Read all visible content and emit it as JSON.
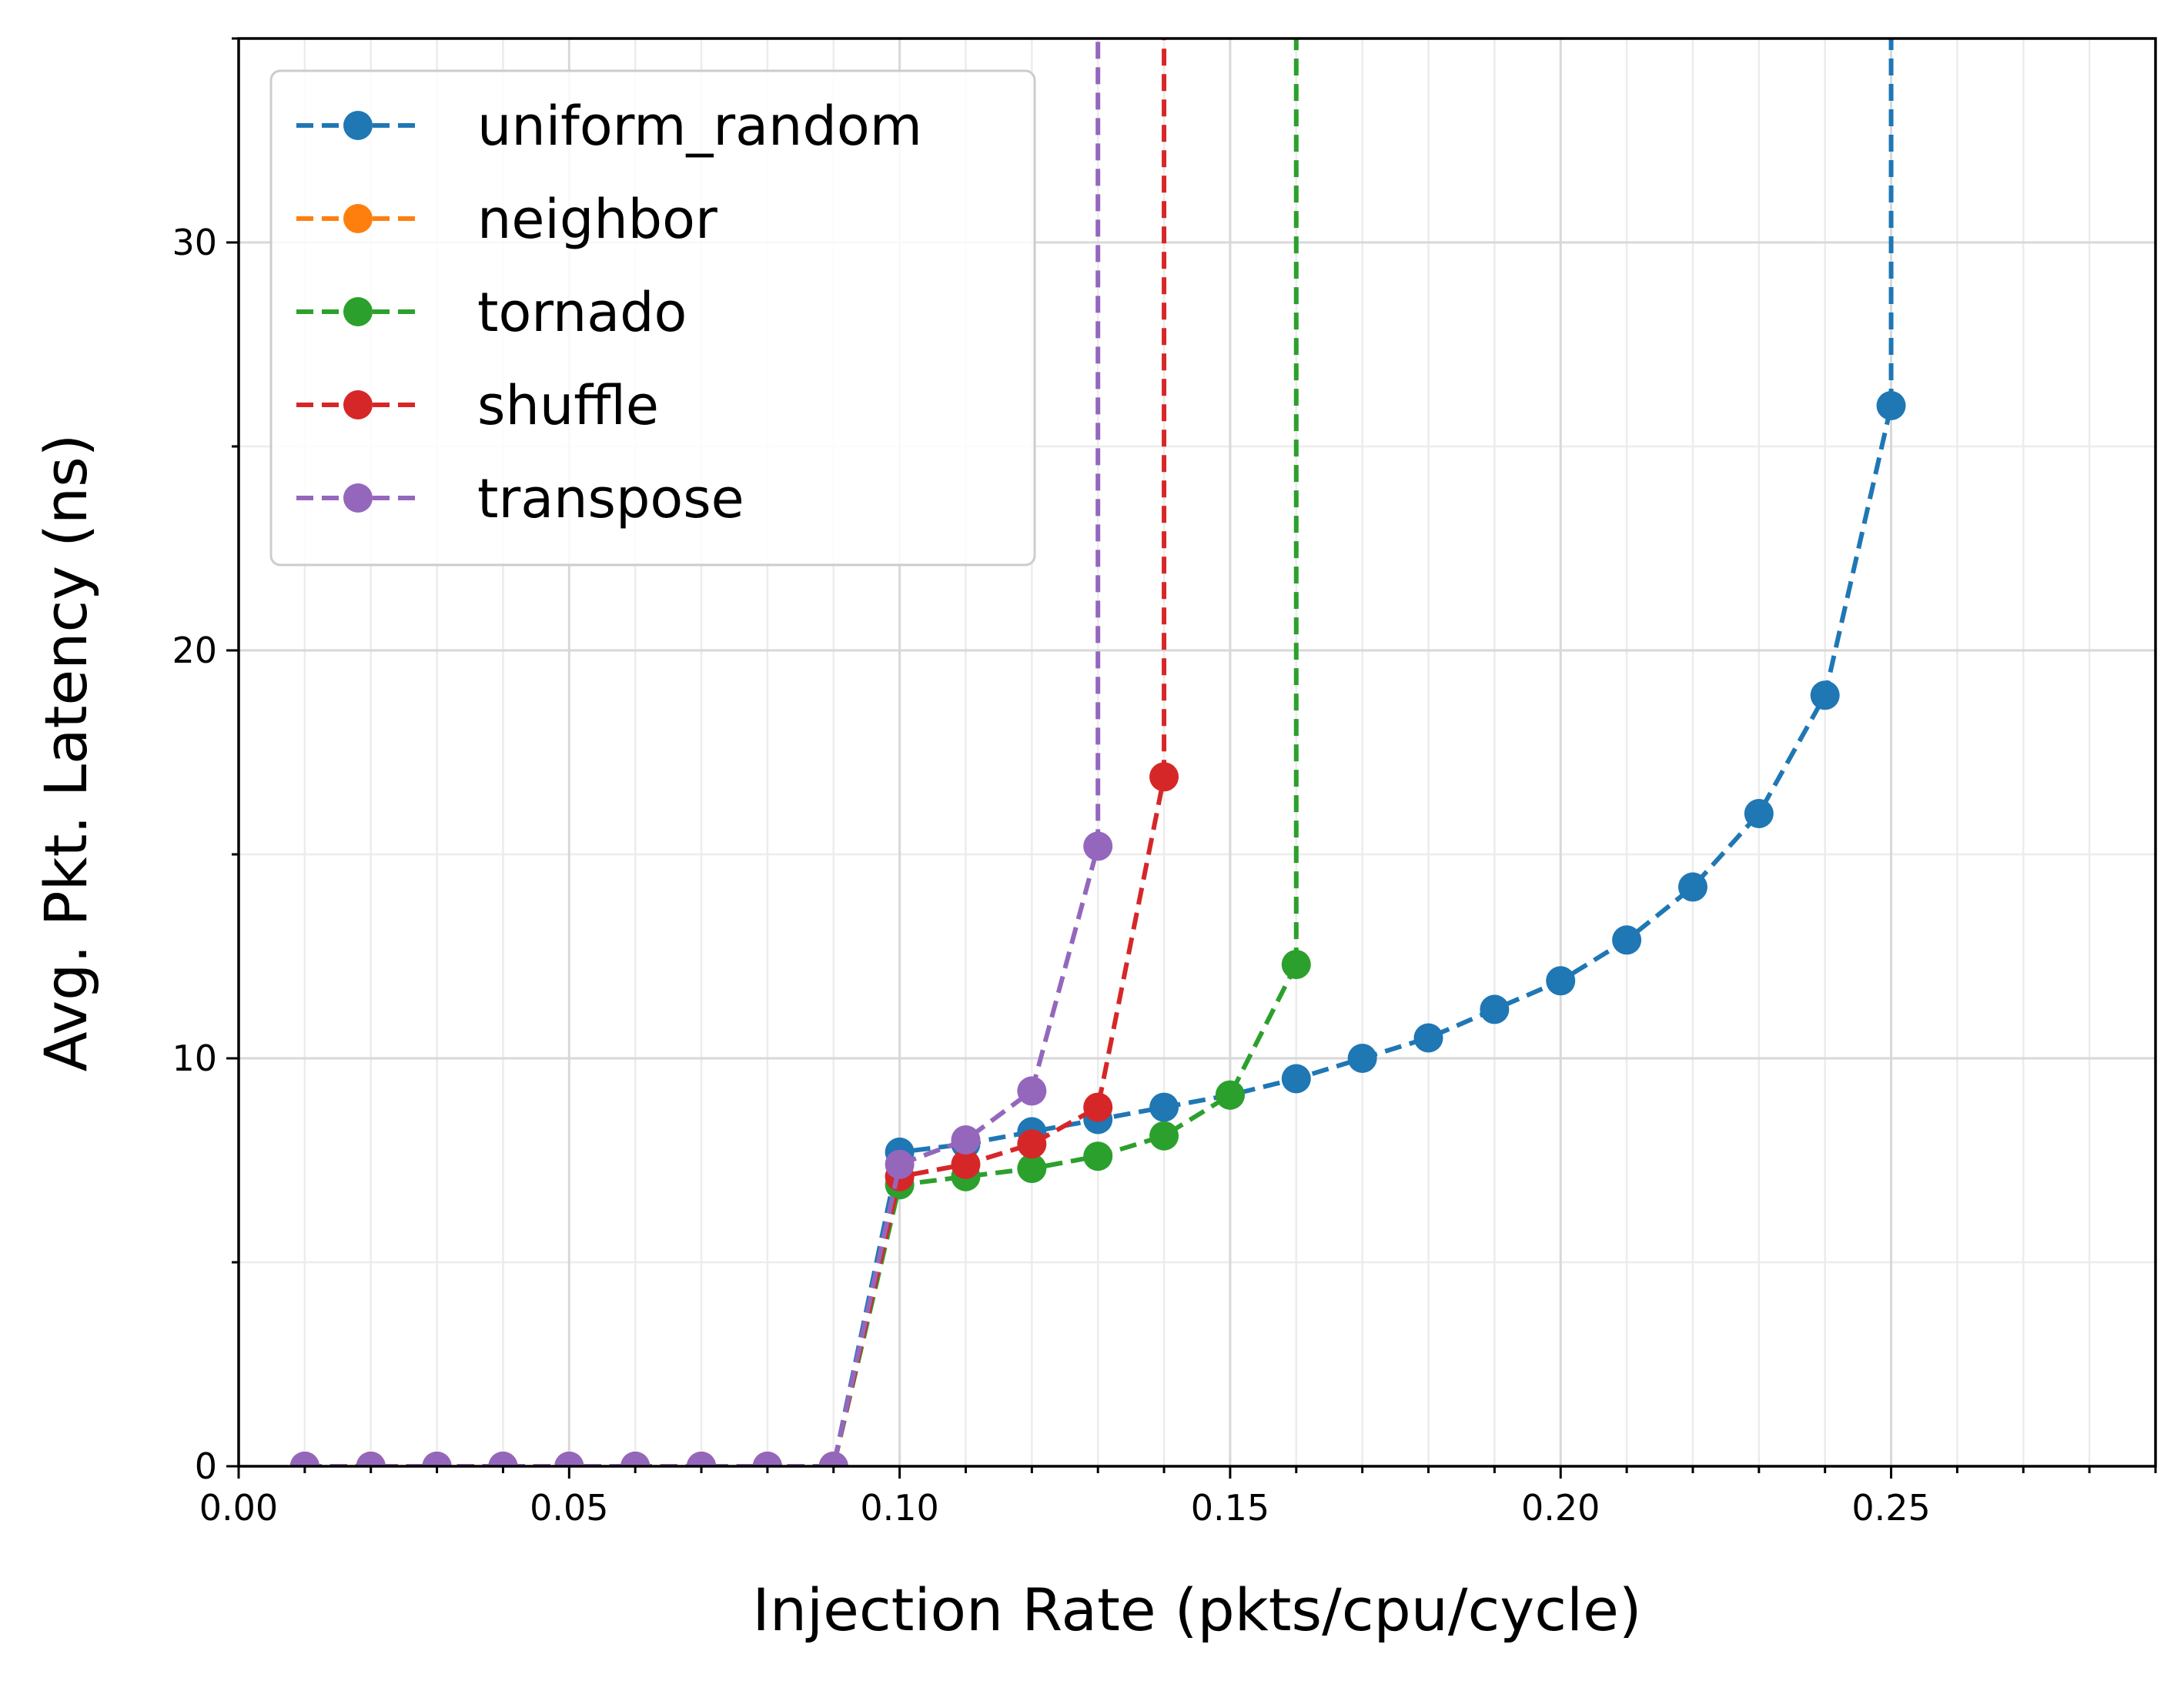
{
  "chart_data": {
    "type": "line",
    "xlabel": "Injection Rate  (pkts/cpu/cycle)",
    "ylabel": "Avg. Pkt. Latency (ns)",
    "xlim": [
      0.0,
      0.29
    ],
    "ylim": [
      0,
      35
    ],
    "x_ticks": [
      0.0,
      0.05,
      0.1,
      0.15,
      0.2,
      0.25
    ],
    "x_tick_labels": [
      "0.00",
      "0.05",
      "0.10",
      "0.15",
      "0.20",
      "0.25"
    ],
    "y_ticks": [
      0,
      10,
      20,
      30
    ],
    "y_tick_labels": [
      "0",
      "10",
      "20",
      "30"
    ],
    "grid": true,
    "legend_position": "upper-left",
    "series": [
      {
        "name": "uniform_random",
        "color": "#1f77b4",
        "x": [
          0.01,
          0.02,
          0.03,
          0.04,
          0.05,
          0.06,
          0.07,
          0.08,
          0.09,
          0.1,
          0.11,
          0.12,
          0.13,
          0.14,
          0.15,
          0.16,
          0.17,
          0.18,
          0.19,
          0.2,
          0.21,
          0.22,
          0.23,
          0.24,
          0.25
        ],
        "y": [
          0,
          0,
          0,
          0,
          0,
          0,
          0,
          0,
          0,
          7.7,
          7.9,
          8.2,
          8.5,
          8.8,
          9.1,
          9.5,
          10.0,
          10.5,
          11.2,
          11.9,
          12.9,
          14.2,
          16.0,
          18.9,
          26.0
        ],
        "diverges_at_x": 0.25
      },
      {
        "name": "neighbor",
        "color": "#ff7f0e",
        "x": [
          0.01,
          0.02,
          0.03,
          0.04,
          0.05,
          0.06,
          0.07,
          0.08,
          0.09
        ],
        "y": [
          0,
          0,
          0,
          0,
          0,
          0,
          0,
          0,
          0
        ]
      },
      {
        "name": "tornado",
        "color": "#2ca02c",
        "x": [
          0.01,
          0.02,
          0.03,
          0.04,
          0.05,
          0.06,
          0.07,
          0.08,
          0.09,
          0.1,
          0.11,
          0.12,
          0.13,
          0.14,
          0.15,
          0.16
        ],
        "y": [
          0,
          0,
          0,
          0,
          0,
          0,
          0,
          0,
          0,
          6.9,
          7.1,
          7.3,
          7.6,
          8.1,
          9.1,
          12.3
        ],
        "diverges_at_x": 0.16
      },
      {
        "name": "shuffle",
        "color": "#d62728",
        "x": [
          0.01,
          0.02,
          0.03,
          0.04,
          0.05,
          0.06,
          0.07,
          0.08,
          0.09,
          0.1,
          0.11,
          0.12,
          0.13,
          0.14
        ],
        "y": [
          0,
          0,
          0,
          0,
          0,
          0,
          0,
          0,
          0,
          7.1,
          7.4,
          7.9,
          8.8,
          16.9
        ],
        "diverges_at_x": 0.14
      },
      {
        "name": "transpose",
        "color": "#9467bd",
        "x": [
          0.01,
          0.02,
          0.03,
          0.04,
          0.05,
          0.06,
          0.07,
          0.08,
          0.09,
          0.1,
          0.11,
          0.12,
          0.13
        ],
        "y": [
          0,
          0,
          0,
          0,
          0,
          0,
          0,
          0,
          0,
          7.4,
          8.0,
          9.2,
          15.2
        ],
        "diverges_at_x": 0.13
      }
    ]
  }
}
